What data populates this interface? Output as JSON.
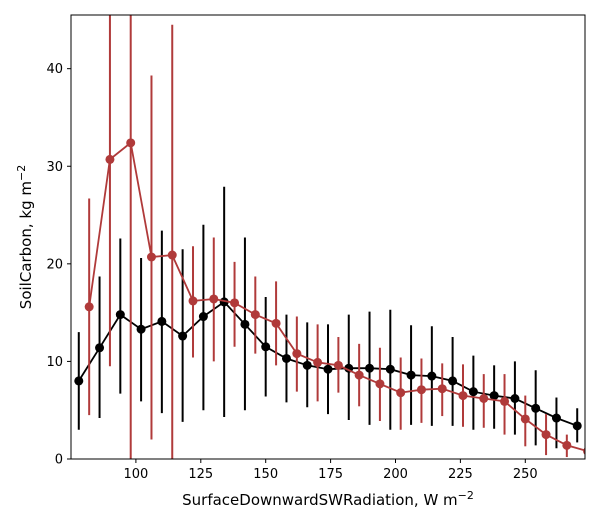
{
  "chart_data": {
    "type": "line",
    "title": "",
    "xlabel": "SurfaceDownwardSWRadiation,  W m",
    "xlabel_sup": "−2",
    "ylabel": "SoilCarbon,  kg m",
    "ylabel_sup": "−2",
    "xlim": [
      75,
      273
    ],
    "ylim": [
      0,
      45.5
    ],
    "xticks": [
      100,
      125,
      150,
      175,
      200,
      225,
      250
    ],
    "yticks": [
      0,
      10,
      20,
      30,
      40
    ],
    "grid": false,
    "legend": "none",
    "series": [
      {
        "color": "#000000",
        "x": [
          78,
          86,
          94,
          102,
          110,
          118,
          126,
          134,
          142,
          150,
          158,
          166,
          174,
          182,
          190,
          198,
          206,
          214,
          222,
          230,
          238,
          246,
          254,
          262,
          270
        ],
        "y": [
          8.0,
          11.4,
          14.8,
          13.3,
          14.1,
          12.6,
          14.6,
          16.1,
          13.8,
          11.5,
          10.3,
          9.6,
          9.2,
          9.3,
          9.3,
          9.2,
          8.6,
          8.5,
          8.0,
          6.9,
          6.5,
          6.2,
          5.2,
          4.2,
          3.4
        ],
        "err_low": [
          3.0,
          4.2,
          6.7,
          5.9,
          4.7,
          3.8,
          5.0,
          4.3,
          5.0,
          6.4,
          5.8,
          5.3,
          4.6,
          4.0,
          3.5,
          3.0,
          3.5,
          3.4,
          3.4,
          3.0,
          3.1,
          2.5,
          1.4,
          1.1,
          1.7
        ],
        "err_high": [
          13.0,
          18.7,
          22.6,
          20.6,
          23.4,
          21.5,
          24.0,
          27.9,
          22.7,
          16.6,
          14.8,
          14.0,
          13.8,
          14.8,
          15.1,
          15.3,
          13.7,
          13.6,
          12.5,
          10.6,
          9.6,
          10.0,
          9.1,
          6.3,
          5.2
        ]
      },
      {
        "color": "#b03a3a",
        "x": [
          82,
          90,
          98,
          106,
          114,
          122,
          130,
          138,
          146,
          154,
          162,
          170,
          178,
          186,
          194,
          202,
          210,
          218,
          226,
          234,
          242,
          250,
          258,
          266,
          274
        ],
        "y": [
          15.6,
          30.7,
          32.4,
          20.7,
          20.9,
          16.2,
          16.4,
          16.0,
          14.8,
          13.9,
          10.8,
          9.9,
          9.6,
          8.6,
          7.7,
          6.8,
          7.1,
          7.2,
          6.5,
          6.2,
          5.9,
          4.1,
          2.5,
          1.4,
          0.8
        ],
        "err_low": [
          4.5,
          9.5,
          0,
          2.0,
          0,
          10.4,
          10.0,
          11.5,
          10.8,
          9.6,
          6.9,
          5.9,
          6.8,
          5.4,
          3.9,
          3.0,
          3.7,
          4.4,
          3.3,
          3.2,
          2.5,
          1.3,
          0.4,
          0.2,
          0
        ],
        "err_high": [
          26.7,
          45.5,
          45.5,
          39.3,
          44.5,
          21.8,
          22.7,
          20.2,
          18.7,
          18.2,
          14.6,
          13.8,
          12.5,
          11.8,
          11.4,
          10.4,
          10.3,
          9.8,
          9.7,
          8.7,
          8.7,
          6.5,
          4.6,
          2.5,
          1.8
        ]
      }
    ]
  }
}
